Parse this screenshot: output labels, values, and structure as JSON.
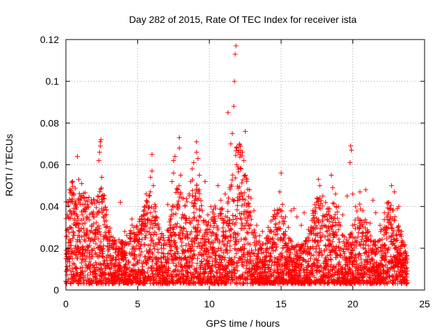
{
  "chart_data": {
    "type": "scatter",
    "title": "Day 282 of 2015, Rate Of TEC Index for receiver ista",
    "xlabel": "GPS time / hours",
    "ylabel": "ROTI / TECUs",
    "xlim": [
      0,
      25
    ],
    "ylim": [
      0,
      0.12
    ],
    "xticks": [
      "0",
      "5",
      "10",
      "15",
      "20",
      "25"
    ],
    "yticks": [
      "0",
      "0.02",
      "0.04",
      "0.06",
      "0.08",
      "0.1",
      "0.12"
    ],
    "grid": true,
    "marker": "plus",
    "series": [
      {
        "color": "#ff0000",
        "points": [
          [
            0.1,
            0.036
          ],
          [
            0.2,
            0.035
          ],
          [
            0.3,
            0.038
          ],
          [
            0.5,
            0.028
          ],
          [
            0.7,
            0.041
          ],
          [
            0.9,
            0.053
          ],
          [
            0.9,
            0.042
          ],
          [
            1.1,
            0.051
          ],
          [
            1.2,
            0.041
          ],
          [
            1.3,
            0.039
          ],
          [
            1.4,
            0.044
          ],
          [
            0.8,
            0.064
          ],
          [
            1.6,
            0.025
          ],
          [
            1.8,
            0.031
          ],
          [
            1.9,
            0.035
          ],
          [
            2.0,
            0.027
          ],
          [
            2.2,
            0.03
          ],
          [
            2.3,
            0.062
          ],
          [
            2.35,
            0.066
          ],
          [
            2.4,
            0.071
          ],
          [
            2.45,
            0.072
          ],
          [
            2.4,
            0.069
          ],
          [
            2.5,
            0.054
          ],
          [
            2.5,
            0.045
          ],
          [
            2.6,
            0.038
          ],
          [
            2.7,
            0.033
          ],
          [
            2.8,
            0.03
          ],
          [
            3.3,
            0.02
          ],
          [
            3.7,
            0.024
          ],
          [
            3.8,
            0.042
          ],
          [
            4.1,
            0.028
          ],
          [
            4.4,
            0.022
          ],
          [
            4.6,
            0.034
          ],
          [
            4.9,
            0.026
          ],
          [
            5.2,
            0.021
          ],
          [
            5.5,
            0.04
          ],
          [
            5.6,
            0.046
          ],
          [
            5.8,
            0.045
          ],
          [
            5.9,
            0.054
          ],
          [
            6.0,
            0.057
          ],
          [
            6.0,
            0.065
          ],
          [
            6.1,
            0.05
          ],
          [
            6.2,
            0.041
          ],
          [
            6.3,
            0.035
          ],
          [
            6.5,
            0.029
          ],
          [
            6.8,
            0.026
          ],
          [
            7.1,
            0.041
          ],
          [
            7.4,
            0.052
          ],
          [
            7.5,
            0.056
          ],
          [
            7.5,
            0.062
          ],
          [
            7.6,
            0.064
          ],
          [
            7.8,
            0.048
          ],
          [
            7.9,
            0.068
          ],
          [
            7.9,
            0.073
          ],
          [
            8.0,
            0.055
          ],
          [
            8.1,
            0.044
          ],
          [
            8.3,
            0.035
          ],
          [
            8.6,
            0.046
          ],
          [
            8.7,
            0.052
          ],
          [
            8.8,
            0.058
          ],
          [
            8.9,
            0.061
          ],
          [
            9.1,
            0.066
          ],
          [
            9.1,
            0.071
          ],
          [
            9.2,
            0.063
          ],
          [
            9.3,
            0.055
          ],
          [
            9.3,
            0.048
          ],
          [
            9.5,
            0.038
          ],
          [
            9.7,
            0.052
          ],
          [
            9.9,
            0.036
          ],
          [
            10.1,
            0.04
          ],
          [
            10.3,
            0.03
          ],
          [
            10.4,
            0.034
          ],
          [
            10.6,
            0.05
          ],
          [
            10.8,
            0.043
          ],
          [
            10.9,
            0.039
          ],
          [
            11.1,
            0.046
          ],
          [
            11.3,
            0.085
          ],
          [
            11.5,
            0.07
          ],
          [
            11.6,
            0.075
          ],
          [
            11.7,
            0.088
          ],
          [
            11.75,
            0.1
          ],
          [
            11.8,
            0.113
          ],
          [
            11.85,
            0.117
          ],
          [
            11.9,
            0.068
          ],
          [
            11.9,
            0.06
          ],
          [
            12.1,
            0.07
          ],
          [
            12.2,
            0.058
          ],
          [
            12.3,
            0.066
          ],
          [
            12.4,
            0.062
          ],
          [
            12.5,
            0.076
          ],
          [
            12.6,
            0.052
          ],
          [
            12.8,
            0.048
          ],
          [
            12.9,
            0.044
          ],
          [
            13.1,
            0.038
          ],
          [
            13.3,
            0.031
          ],
          [
            13.5,
            0.026
          ],
          [
            13.7,
            0.028
          ],
          [
            13.9,
            0.022
          ],
          [
            14.1,
            0.03
          ],
          [
            14.3,
            0.033
          ],
          [
            14.6,
            0.03
          ],
          [
            14.8,
            0.037
          ],
          [
            14.9,
            0.047
          ],
          [
            15.0,
            0.056
          ],
          [
            15.1,
            0.041
          ],
          [
            15.3,
            0.035
          ],
          [
            15.5,
            0.03
          ],
          [
            15.7,
            0.038
          ],
          [
            15.9,
            0.039
          ],
          [
            16.1,
            0.035
          ],
          [
            16.4,
            0.031
          ],
          [
            16.6,
            0.037
          ],
          [
            16.9,
            0.029
          ],
          [
            17.2,
            0.038
          ],
          [
            17.5,
            0.044
          ],
          [
            17.6,
            0.053
          ],
          [
            17.7,
            0.05
          ],
          [
            17.9,
            0.045
          ],
          [
            18.1,
            0.042
          ],
          [
            18.3,
            0.039
          ],
          [
            18.5,
            0.055
          ],
          [
            18.6,
            0.049
          ],
          [
            18.8,
            0.046
          ],
          [
            19.0,
            0.04
          ],
          [
            19.3,
            0.036
          ],
          [
            19.6,
            0.045
          ],
          [
            19.8,
            0.061
          ],
          [
            19.85,
            0.069
          ],
          [
            19.9,
            0.067
          ],
          [
            20.0,
            0.046
          ],
          [
            20.2,
            0.04
          ],
          [
            20.5,
            0.047
          ],
          [
            20.7,
            0.038
          ],
          [
            20.9,
            0.048
          ],
          [
            21.2,
            0.032
          ],
          [
            21.4,
            0.043
          ],
          [
            21.6,
            0.037
          ],
          [
            21.9,
            0.031
          ],
          [
            22.2,
            0.037
          ],
          [
            22.5,
            0.042
          ],
          [
            22.7,
            0.05
          ],
          [
            22.9,
            0.047
          ],
          [
            23.1,
            0.039
          ],
          [
            23.2,
            0.04
          ],
          [
            23.4,
            0.028
          ],
          [
            23.6,
            0.018
          ]
        ]
      }
    ]
  }
}
